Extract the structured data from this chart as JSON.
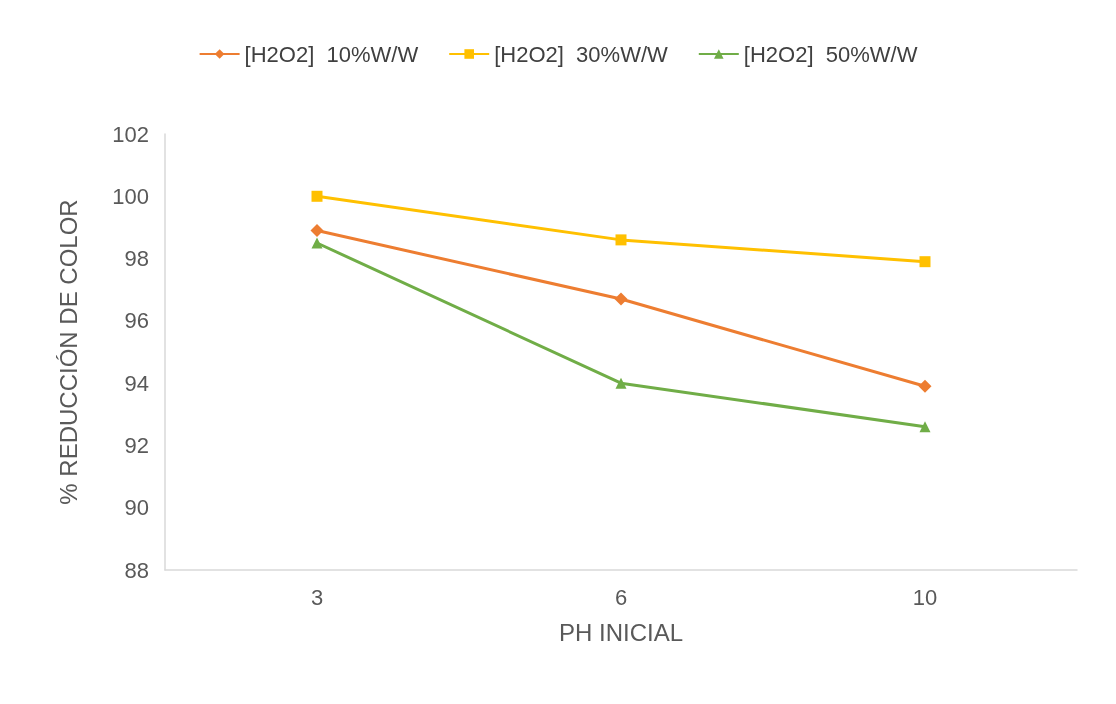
{
  "chart_data": {
    "type": "line",
    "xlabel": "PH INICIAL",
    "ylabel": "% REDUCCIÓN DE COLOR",
    "categories": [
      "3",
      "6",
      "10"
    ],
    "series": [
      {
        "name": "[H2O2]  10%W/W",
        "color": "#ed7d31",
        "marker": "diamond",
        "values": [
          98.9,
          96.7,
          93.9
        ]
      },
      {
        "name": "[H2O2]  30%W/W",
        "color": "#ffc000",
        "marker": "square",
        "values": [
          100.0,
          98.6,
          97.9
        ]
      },
      {
        "name": "[H2O2]  50%W/W",
        "color": "#70ad47",
        "marker": "triangle",
        "values": [
          98.5,
          94.0,
          92.6
        ]
      }
    ],
    "ylim": [
      88,
      102
    ],
    "yticks": [
      88,
      90,
      92,
      94,
      96,
      98,
      100,
      102
    ],
    "grid": false,
    "legend": "top"
  }
}
